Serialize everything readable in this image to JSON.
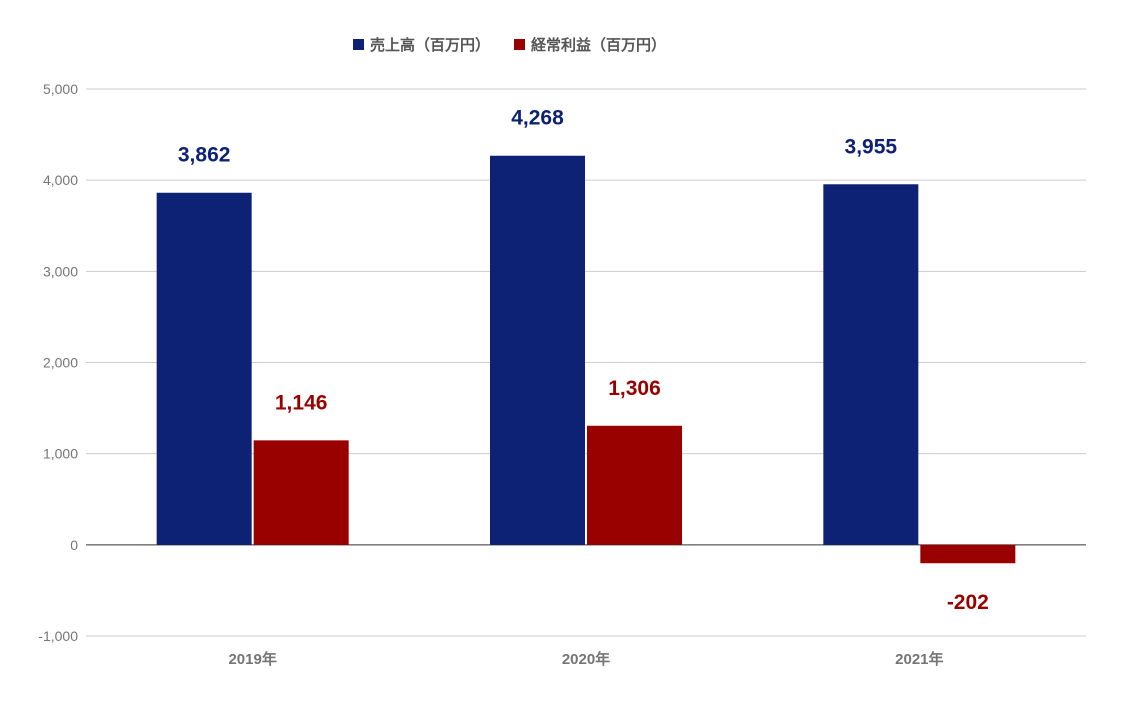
{
  "chart_data": {
    "type": "bar",
    "categories": [
      "2019年",
      "2020年",
      "2021年"
    ],
    "series": [
      {
        "name": "売上高（百万円）",
        "values": [
          3862,
          4268,
          3955
        ],
        "labels": [
          "3,862",
          "4,268",
          "3,955"
        ],
        "color": "#0d2275"
      },
      {
        "name": "経常利益（百万円）",
        "values": [
          1146,
          1306,
          -202
        ],
        "labels": [
          "1,146",
          "1,306",
          "-202"
        ],
        "color": "#990000"
      }
    ],
    "yticks": [
      5000,
      4000,
      3000,
      2000,
      1000,
      0,
      -1000
    ],
    "ytick_labels": [
      "5,000",
      "4,000",
      "3,000",
      "2,000",
      "1,000",
      "0",
      "-1,000"
    ],
    "ylim": [
      -1000,
      5000
    ],
    "grid": true,
    "legend_position": "top"
  },
  "colors": {
    "grid": "#cccccc",
    "zero_line": "#333333"
  }
}
